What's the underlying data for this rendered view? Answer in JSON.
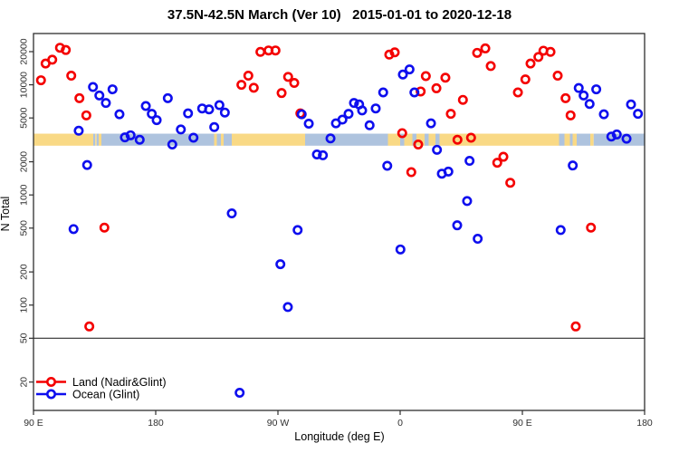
{
  "chart_data": {
    "type": "scatter",
    "title": "37.5N-42.5N March (Ver 10)   2015-01-01 to 2020-12-18",
    "xlabel": "Longitude (deg E)",
    "ylabel": "N Total",
    "x_axis": {
      "range_deg_e": [
        90,
        540
      ],
      "ticks": [
        {
          "lon": 90,
          "label": "90 E"
        },
        {
          "lon": 180,
          "label": "180"
        },
        {
          "lon": 270,
          "label": "90 W"
        },
        {
          "lon": 360,
          "label": "0"
        },
        {
          "lon": 450,
          "label": "90 E"
        },
        {
          "lon": 540,
          "label": "180"
        }
      ]
    },
    "y_axis": {
      "scale": "log",
      "range": [
        10.7,
        29200
      ],
      "ticks": [
        20000,
        10000,
        5000,
        2000,
        1000,
        500,
        200,
        100,
        50,
        20
      ]
    },
    "threshold_line_n": 50,
    "legend_position": "bottom-left",
    "land_ocean_band": {
      "n_range": [
        2800,
        3600
      ],
      "land_color": "#F9D985",
      "ocean_color": "#AEC3DE",
      "segments": [
        {
          "from": 90,
          "to": 134,
          "type": "land"
        },
        {
          "from": 134,
          "to": 135.5,
          "type": "ocean"
        },
        {
          "from": 135.5,
          "to": 136.5,
          "type": "land"
        },
        {
          "from": 136.5,
          "to": 138,
          "type": "ocean"
        },
        {
          "from": 138,
          "to": 140,
          "type": "land"
        },
        {
          "from": 140,
          "to": 223,
          "type": "ocean"
        },
        {
          "from": 223,
          "to": 225,
          "type": "land"
        },
        {
          "from": 225,
          "to": 228,
          "type": "ocean"
        },
        {
          "from": 228,
          "to": 230,
          "type": "land"
        },
        {
          "from": 230,
          "to": 236,
          "type": "ocean"
        },
        {
          "from": 236,
          "to": 290,
          "type": "land"
        },
        {
          "from": 290,
          "to": 351,
          "type": "ocean"
        },
        {
          "from": 351,
          "to": 360,
          "type": "land"
        },
        {
          "from": 360,
          "to": 363,
          "type": "ocean"
        },
        {
          "from": 363,
          "to": 369,
          "type": "land"
        },
        {
          "from": 369,
          "to": 372,
          "type": "ocean"
        },
        {
          "from": 372,
          "to": 378,
          "type": "land"
        },
        {
          "from": 378,
          "to": 381,
          "type": "ocean"
        },
        {
          "from": 381,
          "to": 386,
          "type": "land"
        },
        {
          "from": 386,
          "to": 389,
          "type": "ocean"
        },
        {
          "from": 389,
          "to": 477,
          "type": "land"
        },
        {
          "from": 477,
          "to": 481,
          "type": "ocean"
        },
        {
          "from": 481,
          "to": 485,
          "type": "land"
        },
        {
          "from": 485,
          "to": 487,
          "type": "ocean"
        },
        {
          "from": 487,
          "to": 490,
          "type": "land"
        },
        {
          "from": 490,
          "to": 500,
          "type": "ocean"
        },
        {
          "from": 500,
          "to": 502.5,
          "type": "land"
        },
        {
          "from": 502.5,
          "to": 540,
          "type": "ocean"
        }
      ]
    },
    "series": [
      {
        "name": "Land (Nadir&Glint)",
        "color": "#F40000",
        "symbol": "open-circle",
        "points": [
          [
            95.5,
            11000
          ],
          [
            98.9,
            15600
          ],
          [
            103.8,
            16900
          ],
          [
            109.5,
            21700
          ],
          [
            113.8,
            20700
          ],
          [
            117.8,
            12100
          ],
          [
            123.8,
            7560
          ],
          [
            128.9,
            5280
          ],
          [
            131.1,
            64
          ],
          [
            142.2,
            505
          ],
          [
            243.1,
            10000
          ],
          [
            248.2,
            12100
          ],
          [
            252.2,
            9400
          ],
          [
            257.1,
            19900
          ],
          [
            263.1,
            20500
          ],
          [
            268.2,
            20500
          ],
          [
            272.7,
            8420
          ],
          [
            277.5,
            11800
          ],
          [
            282.0,
            10400
          ],
          [
            286.5,
            5500
          ],
          [
            352.0,
            18800
          ],
          [
            356.0,
            19700
          ],
          [
            361.5,
            3640
          ],
          [
            368.2,
            1610
          ],
          [
            373.3,
            2870
          ],
          [
            375.1,
            8700
          ],
          [
            378.9,
            12000
          ],
          [
            386.7,
            9300
          ],
          [
            393.3,
            11600
          ],
          [
            397.3,
            5450
          ],
          [
            402.2,
            3170
          ],
          [
            406.2,
            7300
          ],
          [
            412.2,
            3310
          ],
          [
            416.7,
            19500
          ],
          [
            422.7,
            21400
          ],
          [
            426.7,
            14800
          ],
          [
            431.5,
            1960
          ],
          [
            436.0,
            2220
          ],
          [
            441.1,
            1290
          ],
          [
            446.7,
            8530
          ],
          [
            452.2,
            11200
          ],
          [
            456.0,
            15600
          ],
          [
            461.8,
            17900
          ],
          [
            465.5,
            20400
          ],
          [
            470.7,
            19900
          ],
          [
            476.0,
            12100
          ],
          [
            481.8,
            7560
          ],
          [
            485.5,
            5280
          ],
          [
            489.3,
            64
          ],
          [
            500.5,
            505
          ]
        ]
      },
      {
        "name": "Ocean (Glint)",
        "color": "#0E0EEE",
        "symbol": "open-circle",
        "points": [
          [
            119.5,
            490
          ],
          [
            123.3,
            3830
          ],
          [
            129.5,
            1870
          ],
          [
            133.8,
            9550
          ],
          [
            138.5,
            8000
          ],
          [
            143.3,
            6840
          ],
          [
            148.2,
            9100
          ],
          [
            153.3,
            5400
          ],
          [
            157.3,
            3330
          ],
          [
            161.5,
            3480
          ],
          [
            168.2,
            3170
          ],
          [
            172.7,
            6420
          ],
          [
            177.1,
            5450
          ],
          [
            180.7,
            4780
          ],
          [
            188.9,
            7560
          ],
          [
            192.2,
            2870
          ],
          [
            198.5,
            3930
          ],
          [
            203.8,
            5500
          ],
          [
            207.8,
            3310
          ],
          [
            214.2,
            6100
          ],
          [
            219.3,
            5980
          ],
          [
            223.1,
            4130
          ],
          [
            226.9,
            6540
          ],
          [
            230.9,
            5600
          ],
          [
            236.0,
            680
          ],
          [
            241.8,
            16
          ],
          [
            271.8,
            235
          ],
          [
            277.3,
            96
          ],
          [
            284.5,
            480
          ],
          [
            287.5,
            5400
          ],
          [
            292.7,
            4440
          ],
          [
            298.7,
            2330
          ],
          [
            303.1,
            2290
          ],
          [
            308.7,
            3260
          ],
          [
            312.7,
            4470
          ],
          [
            317.5,
            4830
          ],
          [
            322.0,
            5450
          ],
          [
            326.0,
            6840
          ],
          [
            329.8,
            6630
          ],
          [
            332.0,
            5850
          ],
          [
            337.5,
            4290
          ],
          [
            342.0,
            6100
          ],
          [
            347.5,
            8530
          ],
          [
            350.5,
            1840
          ],
          [
            360.2,
            320
          ],
          [
            362.0,
            12400
          ],
          [
            366.9,
            13800
          ],
          [
            370.5,
            8530
          ],
          [
            382.7,
            4470
          ],
          [
            387.1,
            2570
          ],
          [
            390.7,
            1560
          ],
          [
            395.5,
            1630
          ],
          [
            402.0,
            530
          ],
          [
            409.3,
            880
          ],
          [
            411.1,
            2040
          ],
          [
            417.1,
            400
          ],
          [
            478.2,
            480
          ],
          [
            487.1,
            1850
          ],
          [
            491.5,
            9350
          ],
          [
            495.1,
            8000
          ],
          [
            499.5,
            6700
          ],
          [
            504.4,
            9100
          ],
          [
            510.0,
            5400
          ],
          [
            515.5,
            3390
          ],
          [
            519.5,
            3540
          ],
          [
            526.7,
            3240
          ],
          [
            530.0,
            6630
          ],
          [
            535.1,
            5450
          ]
        ]
      }
    ],
    "style": {
      "axis_color": "#2e2e2e",
      "tick_label_color": "#303030",
      "point_radius": 4.2,
      "point_stroke_width": 2.6
    }
  }
}
